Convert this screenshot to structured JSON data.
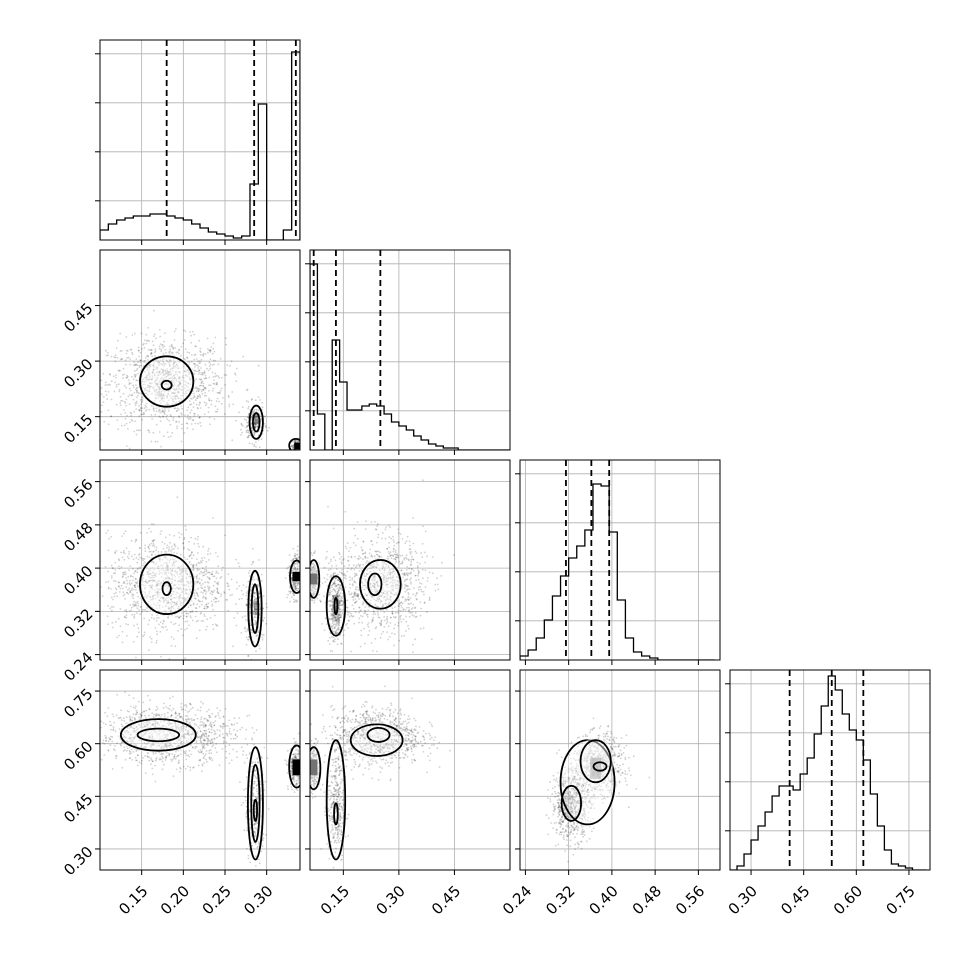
{
  "chart_data": {
    "type": "corner",
    "grid": true,
    "parameters": [
      {
        "range": [
          0.1,
          0.34
        ],
        "tick_values": [
          0.15,
          0.2,
          0.25,
          0.3
        ],
        "tick_labels": [
          "0.15",
          "0.20",
          "0.25",
          "0.30"
        ],
        "quantiles_dashed": [
          0.18,
          0.285,
          0.335
        ],
        "histogram": {
          "edges": [
            0.1,
            0.11,
            0.12,
            0.13,
            0.14,
            0.15,
            0.16,
            0.17,
            0.18,
            0.19,
            0.2,
            0.21,
            0.22,
            0.23,
            0.24,
            0.25,
            0.26,
            0.27,
            0.28,
            0.29,
            0.3,
            0.31,
            0.32,
            0.33,
            0.34
          ],
          "counts": [
            0.05,
            0.08,
            0.1,
            0.11,
            0.12,
            0.12,
            0.13,
            0.13,
            0.12,
            0.11,
            0.1,
            0.08,
            0.06,
            0.04,
            0.03,
            0.02,
            0.01,
            0.02,
            0.28,
            0.68,
            0.0,
            0.0,
            0.05,
            0.94
          ]
        }
      },
      {
        "range": [
          0.06,
          0.6
        ],
        "tick_values": [
          0.15,
          0.3,
          0.45
        ],
        "tick_labels": [
          "0.15",
          "0.30",
          "0.45"
        ],
        "quantiles_dashed": [
          0.07,
          0.13,
          0.25
        ],
        "histogram": {
          "edges": [
            0.06,
            0.08,
            0.1,
            0.12,
            0.14,
            0.16,
            0.18,
            0.2,
            0.22,
            0.24,
            0.26,
            0.28,
            0.3,
            0.32,
            0.34,
            0.36,
            0.38,
            0.4,
            0.42,
            0.44,
            0.46,
            0.48,
            0.5,
            0.52,
            0.54,
            0.56,
            0.58,
            0.6
          ],
          "counts": [
            0.93,
            0.18,
            0.0,
            0.55,
            0.34,
            0.2,
            0.2,
            0.22,
            0.23,
            0.22,
            0.18,
            0.14,
            0.12,
            0.1,
            0.07,
            0.05,
            0.03,
            0.02,
            0.01,
            0.01,
            0.0,
            0.0,
            0.0,
            0.0,
            0.0,
            0.0,
            0.0
          ]
        }
      },
      {
        "range": [
          0.23,
          0.6
        ],
        "tick_values": [
          0.24,
          0.32,
          0.4,
          0.48,
          0.56
        ],
        "tick_labels": [
          "0.24",
          "0.32",
          "0.40",
          "0.48",
          "0.56"
        ],
        "quantiles_dashed": [
          0.315,
          0.362,
          0.395
        ],
        "histogram": {
          "edges": [
            0.23,
            0.245,
            0.26,
            0.275,
            0.29,
            0.305,
            0.32,
            0.335,
            0.35,
            0.365,
            0.38,
            0.395,
            0.41,
            0.425,
            0.44,
            0.455,
            0.47,
            0.485,
            0.5,
            0.515,
            0.53,
            0.545,
            0.56,
            0.575,
            0.59
          ],
          "counts": [
            0.02,
            0.05,
            0.11,
            0.2,
            0.32,
            0.42,
            0.51,
            0.57,
            0.65,
            0.88,
            0.87,
            0.64,
            0.3,
            0.11,
            0.04,
            0.02,
            0.01,
            0.0,
            0.0,
            0.0,
            0.0,
            0.0,
            0.0,
            0.0
          ]
        }
      },
      {
        "range": [
          0.24,
          0.81
        ],
        "tick_values": [
          0.3,
          0.45,
          0.6,
          0.75
        ],
        "tick_labels": [
          "0.30",
          "0.45",
          "0.60",
          "0.75"
        ],
        "quantiles_dashed": [
          0.41,
          0.53,
          0.62
        ],
        "histogram": {
          "edges": [
            0.24,
            0.26,
            0.28,
            0.3,
            0.32,
            0.34,
            0.36,
            0.38,
            0.4,
            0.42,
            0.44,
            0.46,
            0.48,
            0.5,
            0.52,
            0.54,
            0.56,
            0.58,
            0.6,
            0.62,
            0.64,
            0.66,
            0.68,
            0.7,
            0.72,
            0.74,
            0.76,
            0.78,
            0.8
          ],
          "counts": [
            0.0,
            0.02,
            0.08,
            0.15,
            0.22,
            0.29,
            0.37,
            0.42,
            0.42,
            0.4,
            0.48,
            0.56,
            0.68,
            0.82,
            0.97,
            0.9,
            0.78,
            0.7,
            0.65,
            0.55,
            0.38,
            0.22,
            0.1,
            0.03,
            0.02,
            0.01,
            0.0,
            0.0
          ]
        }
      }
    ],
    "pairs": [
      {
        "row": 1,
        "col": 0,
        "clusters": [
          {
            "cx": 0.18,
            "cy": 0.24,
            "sx": 0.035,
            "sy": 0.06,
            "n": 1200
          },
          {
            "cx": 0.285,
            "cy": 0.13,
            "sx": 0.006,
            "sy": 0.025,
            "n": 220
          },
          {
            "cx": 0.335,
            "cy": 0.07,
            "sx": 0.003,
            "sy": 0.01,
            "n": 120
          }
        ],
        "contours": [
          {
            "cx": 0.18,
            "cy": 0.245,
            "rx": 0.032,
            "ry": 0.068
          },
          {
            "cx": 0.18,
            "cy": 0.235,
            "rx": 0.006,
            "ry": 0.012
          },
          {
            "cx": 0.2875,
            "cy": 0.135,
            "rx": 0.008,
            "ry": 0.045
          },
          {
            "cx": 0.2875,
            "cy": 0.135,
            "rx": 0.004,
            "ry": 0.025
          },
          {
            "cx": 0.335,
            "cy": 0.072,
            "rx": 0.008,
            "ry": 0.018
          }
        ],
        "dense_cells": [
          {
            "x": 0.285,
            "y": 0.13,
            "w": 0.006,
            "h": 0.03,
            "shade": 0.35
          },
          {
            "x": 0.333,
            "y": 0.062,
            "w": 0.007,
            "h": 0.018,
            "shade": 1.0
          }
        ]
      },
      {
        "row": 2,
        "col": 0,
        "clusters": [
          {
            "cx": 0.18,
            "cy": 0.37,
            "sx": 0.035,
            "sy": 0.045,
            "n": 1200
          },
          {
            "cx": 0.286,
            "cy": 0.32,
            "sx": 0.006,
            "sy": 0.035,
            "n": 250
          },
          {
            "cx": 0.334,
            "cy": 0.385,
            "sx": 0.004,
            "sy": 0.02,
            "n": 220
          }
        ],
        "contours": [
          {
            "cx": 0.18,
            "cy": 0.37,
            "rx": 0.032,
            "ry": 0.055
          },
          {
            "cx": 0.18,
            "cy": 0.362,
            "rx": 0.005,
            "ry": 0.012
          },
          {
            "cx": 0.286,
            "cy": 0.325,
            "rx": 0.008,
            "ry": 0.07
          },
          {
            "cx": 0.286,
            "cy": 0.325,
            "rx": 0.004,
            "ry": 0.045
          },
          {
            "cx": 0.336,
            "cy": 0.384,
            "rx": 0.008,
            "ry": 0.03
          }
        ],
        "dense_cells": [
          {
            "x": 0.285,
            "y": 0.315,
            "w": 0.004,
            "h": 0.025,
            "shade": 0.3
          },
          {
            "x": 0.331,
            "y": 0.376,
            "w": 0.009,
            "h": 0.017,
            "shade": 1.0
          }
        ]
      },
      {
        "row": 3,
        "col": 0,
        "clusters": [
          {
            "cx": 0.18,
            "cy": 0.625,
            "sx": 0.04,
            "sy": 0.04,
            "n": 1200
          },
          {
            "cx": 0.286,
            "cy": 0.42,
            "sx": 0.006,
            "sy": 0.08,
            "n": 260
          },
          {
            "cx": 0.334,
            "cy": 0.53,
            "sx": 0.004,
            "sy": 0.03,
            "n": 220
          }
        ],
        "contours": [
          {
            "cx": 0.17,
            "cy": 0.625,
            "rx": 0.045,
            "ry": 0.045
          },
          {
            "cx": 0.17,
            "cy": 0.625,
            "rx": 0.025,
            "ry": 0.018
          },
          {
            "cx": 0.2865,
            "cy": 0.43,
            "rx": 0.009,
            "ry": 0.16
          },
          {
            "cx": 0.2865,
            "cy": 0.43,
            "rx": 0.005,
            "ry": 0.11
          },
          {
            "cx": 0.2865,
            "cy": 0.41,
            "rx": 0.002,
            "ry": 0.03
          },
          {
            "cx": 0.336,
            "cy": 0.535,
            "rx": 0.009,
            "ry": 0.06
          }
        ],
        "dense_cells": [
          {
            "x": 0.331,
            "y": 0.51,
            "w": 0.009,
            "h": 0.045,
            "shade": 1.0
          }
        ]
      },
      {
        "row": 2,
        "col": 1,
        "clusters": [
          {
            "cx": 0.07,
            "cy": 0.38,
            "sx": 0.008,
            "sy": 0.02,
            "n": 250
          },
          {
            "cx": 0.13,
            "cy": 0.33,
            "sx": 0.012,
            "sy": 0.035,
            "n": 300
          },
          {
            "cx": 0.25,
            "cy": 0.37,
            "sx": 0.06,
            "sy": 0.045,
            "n": 1000
          }
        ],
        "contours": [
          {
            "cx": 0.07,
            "cy": 0.38,
            "rx": 0.015,
            "ry": 0.035
          },
          {
            "cx": 0.13,
            "cy": 0.33,
            "rx": 0.025,
            "ry": 0.055
          },
          {
            "cx": 0.13,
            "cy": 0.33,
            "rx": 0.004,
            "ry": 0.015
          },
          {
            "cx": 0.25,
            "cy": 0.37,
            "rx": 0.055,
            "ry": 0.045
          },
          {
            "cx": 0.235,
            "cy": 0.37,
            "rx": 0.018,
            "ry": 0.02
          }
        ],
        "dense_cells": [
          {
            "x": 0.06,
            "y": 0.37,
            "w": 0.02,
            "h": 0.02,
            "shade": 1.0
          },
          {
            "x": 0.12,
            "y": 0.3,
            "w": 0.02,
            "h": 0.05,
            "shade": 0.2
          }
        ]
      },
      {
        "row": 3,
        "col": 1,
        "clusters": [
          {
            "cx": 0.07,
            "cy": 0.53,
            "sx": 0.008,
            "sy": 0.035,
            "n": 250
          },
          {
            "cx": 0.13,
            "cy": 0.42,
            "sx": 0.012,
            "sy": 0.08,
            "n": 300
          },
          {
            "cx": 0.24,
            "cy": 0.62,
            "sx": 0.06,
            "sy": 0.04,
            "n": 1000
          }
        ],
        "contours": [
          {
            "cx": 0.07,
            "cy": 0.53,
            "rx": 0.018,
            "ry": 0.06
          },
          {
            "cx": 0.13,
            "cy": 0.44,
            "rx": 0.025,
            "ry": 0.17
          },
          {
            "cx": 0.13,
            "cy": 0.4,
            "rx": 0.005,
            "ry": 0.03
          },
          {
            "cx": 0.24,
            "cy": 0.61,
            "rx": 0.07,
            "ry": 0.045
          },
          {
            "cx": 0.245,
            "cy": 0.625,
            "rx": 0.03,
            "ry": 0.02
          }
        ],
        "dense_cells": [
          {
            "x": 0.06,
            "y": 0.51,
            "w": 0.02,
            "h": 0.045,
            "shade": 1.0
          }
        ]
      },
      {
        "row": 3,
        "col": 2,
        "clusters": [
          {
            "cx": 0.375,
            "cy": 0.54,
            "sx": 0.022,
            "sy": 0.04,
            "n": 900
          },
          {
            "cx": 0.325,
            "cy": 0.43,
            "sx": 0.018,
            "sy": 0.05,
            "n": 700
          }
        ],
        "contours": [
          {
            "cx": 0.355,
            "cy": 0.49,
            "rx": 0.05,
            "ry": 0.12
          },
          {
            "cx": 0.37,
            "cy": 0.55,
            "rx": 0.028,
            "ry": 0.06
          },
          {
            "cx": 0.325,
            "cy": 0.43,
            "rx": 0.018,
            "ry": 0.05
          },
          {
            "cx": 0.378,
            "cy": 0.535,
            "rx": 0.012,
            "ry": 0.012
          }
        ],
        "dense_cells": [
          {
            "x": 0.36,
            "y": 0.5,
            "w": 0.02,
            "h": 0.06,
            "shade": 0.6
          },
          {
            "x": 0.31,
            "y": 0.4,
            "w": 0.015,
            "h": 0.05,
            "shade": 0.15
          }
        ]
      }
    ]
  }
}
